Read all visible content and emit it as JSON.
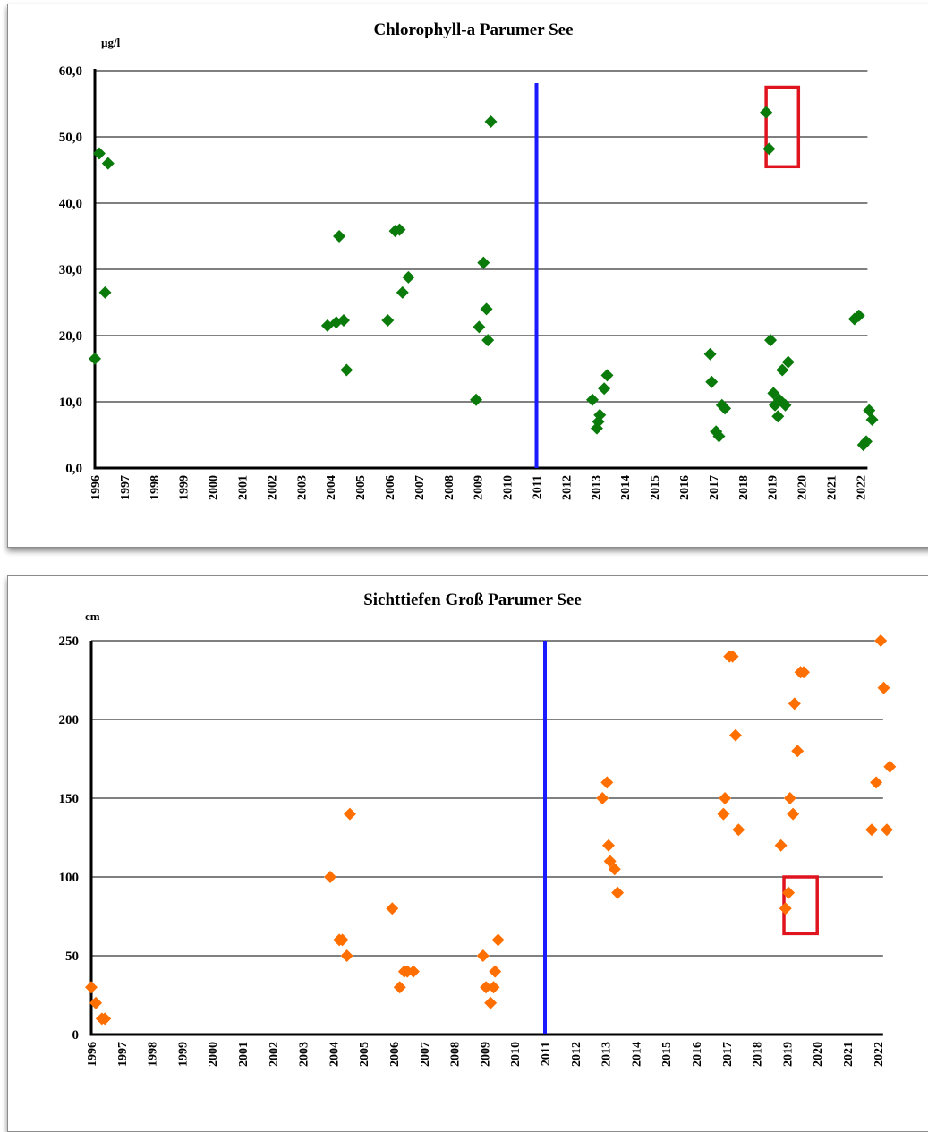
{
  "chart_data": [
    {
      "type": "scatter",
      "title": "Chlorophyll-a  Parumer See",
      "ylabel": "µg/l",
      "y_ticks": [
        "0,0",
        "10,0",
        "20,0",
        "30,0",
        "40,0",
        "50,0",
        "60,0"
      ],
      "ylim": [
        0,
        60
      ],
      "x_ticks": [
        "1996",
        "1997",
        "1998",
        "1999",
        "2000",
        "2001",
        "2002",
        "2003",
        "2004",
        "2005",
        "2006",
        "2007",
        "2008",
        "2009",
        "2010",
        "2011",
        "2012",
        "2013",
        "2014",
        "2015",
        "2016",
        "2017",
        "2018",
        "2019",
        "2020",
        "2021",
        "2022"
      ],
      "grid": true,
      "marker_color": "#0a7a0a",
      "vertical_line": {
        "x": 2011,
        "color": "#1a1aff"
      },
      "highlight_box": {
        "x_range": [
          2018.8,
          2019.9
        ],
        "y_range": [
          45.5,
          57.5
        ],
        "color": "#e0141e"
      },
      "series": [
        {
          "points": [
            [
              1996.0,
              16.5
            ],
            [
              1996.15,
              47.5
            ],
            [
              1996.35,
              26.5
            ],
            [
              1996.45,
              46.0
            ],
            [
              2003.9,
              21.5
            ],
            [
              2004.2,
              22.0
            ],
            [
              2004.3,
              35.0
            ],
            [
              2004.45,
              22.3
            ],
            [
              2004.55,
              14.8
            ],
            [
              2005.95,
              22.3
            ],
            [
              2006.2,
              35.8
            ],
            [
              2006.35,
              36.0
            ],
            [
              2006.45,
              26.5
            ],
            [
              2006.65,
              28.8
            ],
            [
              2008.95,
              10.3
            ],
            [
              2009.05,
              21.3
            ],
            [
              2009.2,
              31.0
            ],
            [
              2009.3,
              24.0
            ],
            [
              2009.35,
              19.3
            ],
            [
              2009.45,
              52.3
            ],
            [
              2012.9,
              10.3
            ],
            [
              2013.05,
              6.0
            ],
            [
              2013.1,
              7.0
            ],
            [
              2013.15,
              8.0
            ],
            [
              2013.3,
              12.0
            ],
            [
              2013.4,
              14.0
            ],
            [
              2016.9,
              17.2
            ],
            [
              2016.95,
              13.0
            ],
            [
              2017.1,
              5.5
            ],
            [
              2017.2,
              4.8
            ],
            [
              2017.3,
              9.5
            ],
            [
              2017.4,
              9.0
            ],
            [
              2018.8,
              53.7
            ],
            [
              2018.9,
              48.2
            ],
            [
              2018.95,
              19.3
            ],
            [
              2019.05,
              11.3
            ],
            [
              2019.1,
              9.5
            ],
            [
              2019.2,
              7.8
            ],
            [
              2019.25,
              10.3
            ],
            [
              2019.35,
              14.8
            ],
            [
              2019.45,
              9.5
            ],
            [
              2019.55,
              16.0
            ],
            [
              2021.8,
              22.5
            ],
            [
              2021.95,
              23.0
            ],
            [
              2022.1,
              3.5
            ],
            [
              2022.2,
              4.0
            ],
            [
              2022.3,
              8.7
            ],
            [
              2022.4,
              7.3
            ]
          ]
        }
      ]
    },
    {
      "type": "scatter",
      "title": "Sichttiefen Groß Parumer See",
      "ylabel": "cm",
      "y_ticks": [
        "0",
        "50",
        "100",
        "150",
        "200",
        "250"
      ],
      "ylim": [
        0,
        250
      ],
      "x_ticks": [
        "1996",
        "1997",
        "1998",
        "1999",
        "2000",
        "2001",
        "2002",
        "2003",
        "2004",
        "2005",
        "2006",
        "2007",
        "2008",
        "2009",
        "2010",
        "2011",
        "2012",
        "2013",
        "2014",
        "2015",
        "2016",
        "2017",
        "2018",
        "2019",
        "2020",
        "2021",
        "2022"
      ],
      "grid": true,
      "marker_color": "#ff6f00",
      "vertical_line": {
        "x": 2011,
        "color": "#1a1aff"
      },
      "highlight_box": {
        "x_range": [
          2018.9,
          2020.0
        ],
        "y_range": [
          64,
          100
        ],
        "color": "#e0141e"
      },
      "series": [
        {
          "points": [
            [
              1996.0,
              30
            ],
            [
              1996.15,
              20
            ],
            [
              1996.35,
              10
            ],
            [
              1996.45,
              10
            ],
            [
              2003.9,
              100
            ],
            [
              2004.2,
              60
            ],
            [
              2004.3,
              60
            ],
            [
              2004.45,
              50
            ],
            [
              2004.55,
              140
            ],
            [
              2005.95,
              80
            ],
            [
              2006.2,
              30
            ],
            [
              2006.35,
              40
            ],
            [
              2006.45,
              40
            ],
            [
              2006.65,
              40
            ],
            [
              2008.95,
              50
            ],
            [
              2009.05,
              30
            ],
            [
              2009.2,
              20
            ],
            [
              2009.3,
              30
            ],
            [
              2009.35,
              40
            ],
            [
              2009.45,
              60
            ],
            [
              2012.9,
              150
            ],
            [
              2013.05,
              160
            ],
            [
              2013.1,
              120
            ],
            [
              2013.15,
              110
            ],
            [
              2013.3,
              105
            ],
            [
              2013.4,
              90
            ],
            [
              2016.9,
              140
            ],
            [
              2016.95,
              150
            ],
            [
              2017.1,
              240
            ],
            [
              2017.2,
              240
            ],
            [
              2017.3,
              190
            ],
            [
              2017.4,
              130
            ],
            [
              2018.8,
              120
            ],
            [
              2018.95,
              80
            ],
            [
              2019.05,
              90
            ],
            [
              2019.1,
              150
            ],
            [
              2019.2,
              140
            ],
            [
              2019.25,
              210
            ],
            [
              2019.35,
              180
            ],
            [
              2019.45,
              230
            ],
            [
              2019.55,
              230
            ],
            [
              2021.8,
              130
            ],
            [
              2021.95,
              160
            ],
            [
              2022.1,
              250
            ],
            [
              2022.2,
              220
            ],
            [
              2022.3,
              130
            ],
            [
              2022.4,
              170
            ]
          ]
        }
      ]
    }
  ]
}
